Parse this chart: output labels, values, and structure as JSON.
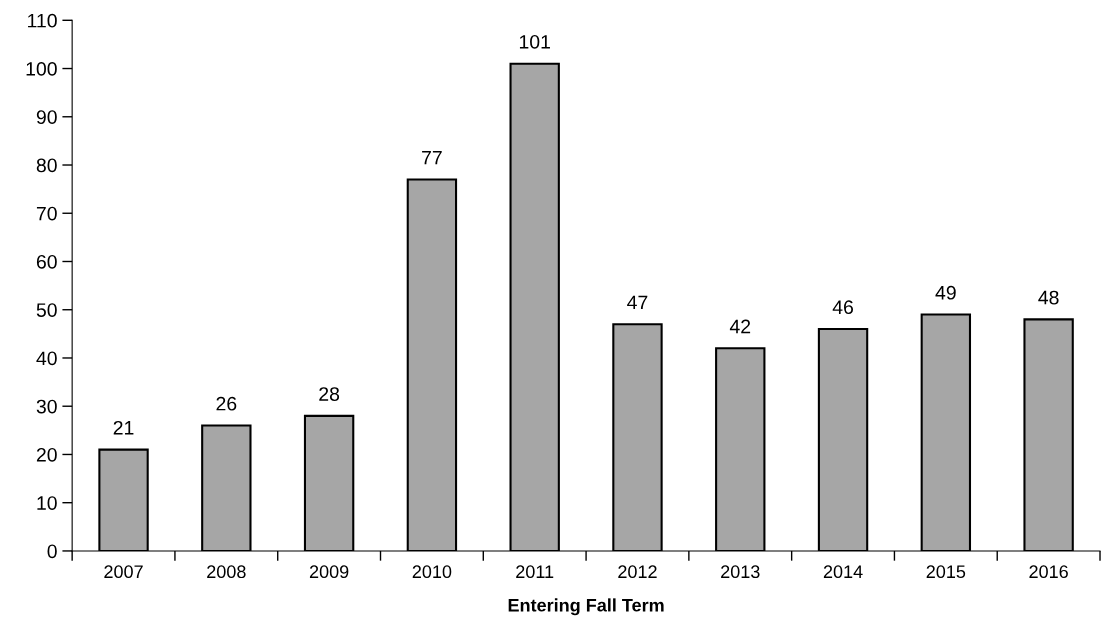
{
  "chart_data": {
    "type": "bar",
    "xlabel": "Entering Fall Term",
    "categories": [
      "2007",
      "2008",
      "2009",
      "2010",
      "2011",
      "2012",
      "2013",
      "2014",
      "2015",
      "2016"
    ],
    "values": [
      21,
      26,
      28,
      77,
      101,
      47,
      42,
      46,
      49,
      48
    ],
    "color": "#a6a6a6",
    "ylim": [
      0,
      110
    ],
    "yticks": [
      0,
      10,
      20,
      30,
      40,
      50,
      60,
      70,
      80,
      90,
      100,
      110
    ],
    "grid": false,
    "legend": false,
    "data_labels": true
  }
}
